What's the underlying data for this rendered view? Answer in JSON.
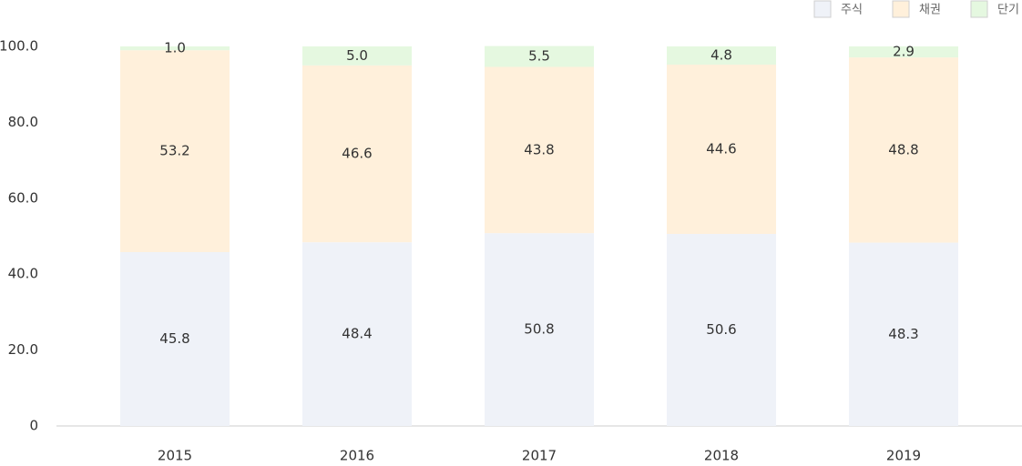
{
  "chart_data": {
    "type": "bar",
    "stacked": true,
    "categories": [
      "2015",
      "2016",
      "2017",
      "2018",
      "2019"
    ],
    "series": [
      {
        "name": "주식",
        "color": "#eff2f8",
        "values": [
          45.8,
          48.4,
          50.8,
          50.6,
          48.3
        ]
      },
      {
        "name": "채권",
        "color": "#fff0db",
        "values": [
          53.2,
          46.6,
          43.8,
          44.6,
          48.8
        ]
      },
      {
        "name": "단기",
        "color": "#e5f8e0",
        "values": [
          1.0,
          5.0,
          5.5,
          4.8,
          2.9
        ]
      }
    ],
    "y_ticks": [
      "0",
      "20.0",
      "40.0",
      "60.0",
      "80.0",
      "100.0"
    ],
    "ylim": [
      0,
      100
    ],
    "grid": false,
    "legend_position": "top-right"
  }
}
